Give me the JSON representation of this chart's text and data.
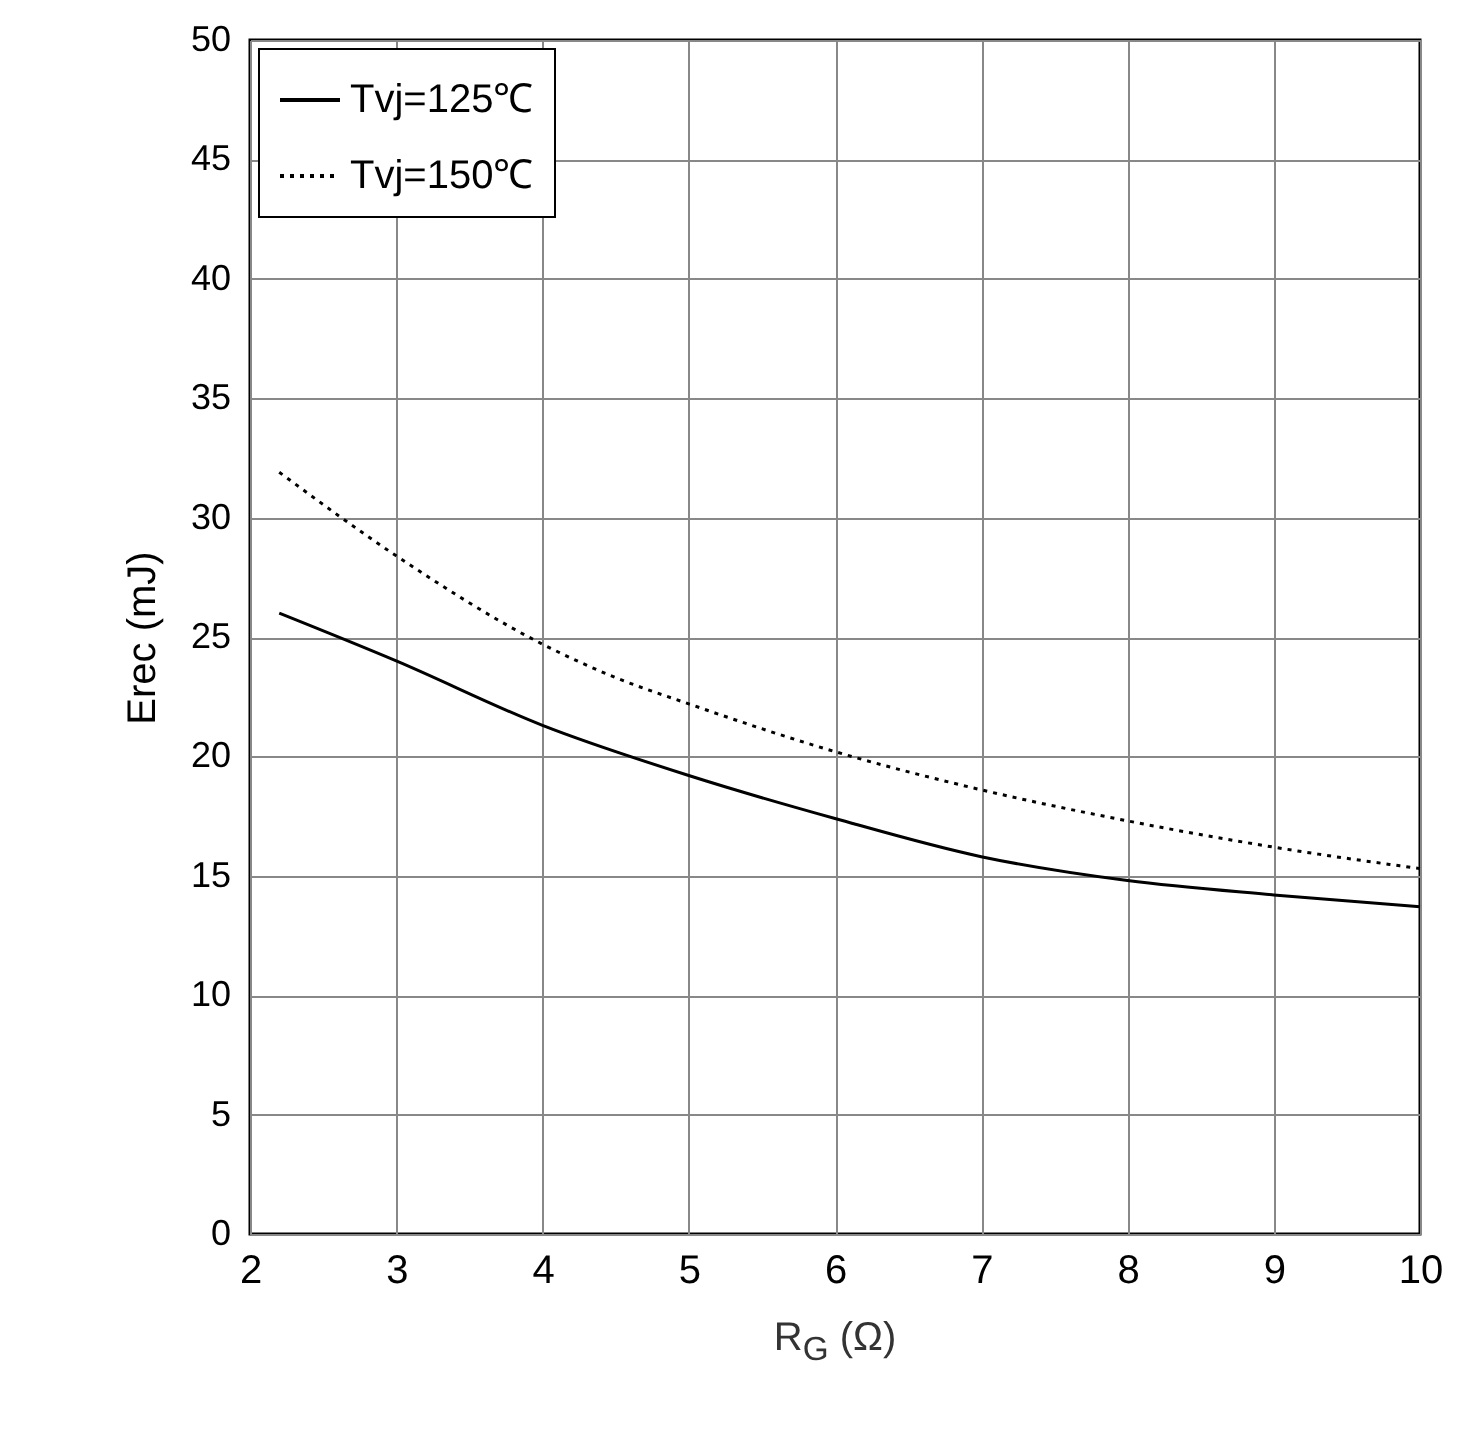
{
  "chart_data": {
    "type": "line",
    "xlabel": "R$_{G}$ (Ω)",
    "ylabel": "Erec (mJ)",
    "xlim": [
      2,
      10
    ],
    "xticks": [
      2,
      3,
      4,
      5,
      6,
      7,
      8,
      9,
      10
    ],
    "ylim": [
      0,
      50
    ],
    "yticks": [
      0,
      5,
      10,
      15,
      20,
      25,
      30,
      35,
      40,
      45,
      50
    ],
    "grid": true,
    "legend": "top left",
    "marker": "none",
    "series": [
      {
        "name": "Tvj=125℃",
        "color": "#000000",
        "line_style": "solid",
        "x": [
          2.2,
          3,
          4,
          5,
          6,
          7,
          8,
          9,
          10
        ],
        "values": [
          26,
          24,
          21.3,
          19.2,
          17.4,
          15.8,
          14.8,
          14.2,
          13.7
        ]
      },
      {
        "name": "Tvj=150℃",
        "color": "#000000",
        "line_style": "dotted",
        "x": [
          2.2,
          3,
          4,
          4.5,
          5,
          6,
          7,
          8,
          9,
          10
        ],
        "values": [
          31.9,
          28.4,
          24.7,
          23.3,
          22.2,
          20.2,
          18.6,
          17.3,
          16.2,
          15.3
        ]
      }
    ]
  }
}
